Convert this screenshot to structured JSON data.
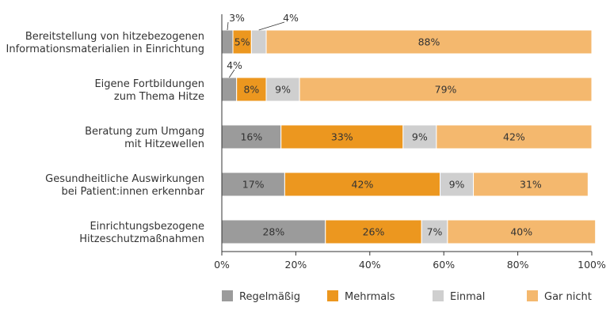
{
  "chart_data": {
    "type": "bar",
    "orientation": "horizontal",
    "stacked": true,
    "categories": [
      [
        "Bereitstellung von hitzebezogenen",
        "Informationsmaterialien in Einrichtung"
      ],
      [
        "Eigene Fortbildungen",
        "zum Thema Hitze"
      ],
      [
        "Beratung zum Umgang",
        "mit Hitzewellen"
      ],
      [
        "Gesundheitliche Auswirkungen",
        "bei Patient:innen erkennbar"
      ],
      [
        "Einrichtungsbezogene",
        "Hitzeschutzmaßnahmen"
      ]
    ],
    "series": [
      {
        "name": "Regelmäßig",
        "color": "#9b9b9b",
        "values": [
          3,
          4,
          16,
          17,
          28
        ],
        "labels": [
          "3%",
          "4%",
          "16%",
          "17%",
          "28%"
        ]
      },
      {
        "name": "Mehrmals",
        "color": "#ec971f",
        "values": [
          5,
          8,
          33,
          42,
          26
        ],
        "labels": [
          "5%",
          "8%",
          "33%",
          "42%",
          "26%"
        ]
      },
      {
        "name": "Einmal",
        "color": "#cfcfcf",
        "values": [
          4,
          9,
          9,
          9,
          7
        ],
        "labels": [
          "4%",
          "9%",
          "9%",
          "9%",
          "7%"
        ]
      },
      {
        "name": "Gar nicht",
        "color": "#f4b86e",
        "values": [
          88,
          79,
          42,
          31,
          40
        ],
        "labels": [
          "88%",
          "79%",
          "42%",
          "31%",
          "40%"
        ]
      }
    ],
    "xlim": [
      0,
      100
    ],
    "xticks": [
      {
        "value": 0,
        "label": "0%"
      },
      {
        "value": 20,
        "label": "20%"
      },
      {
        "value": 40,
        "label": "40%"
      },
      {
        "value": 60,
        "label": "60%"
      },
      {
        "value": 80,
        "label": "80%"
      },
      {
        "value": 100,
        "label": "100%"
      }
    ],
    "grid": false,
    "legend_position": "bottom"
  }
}
